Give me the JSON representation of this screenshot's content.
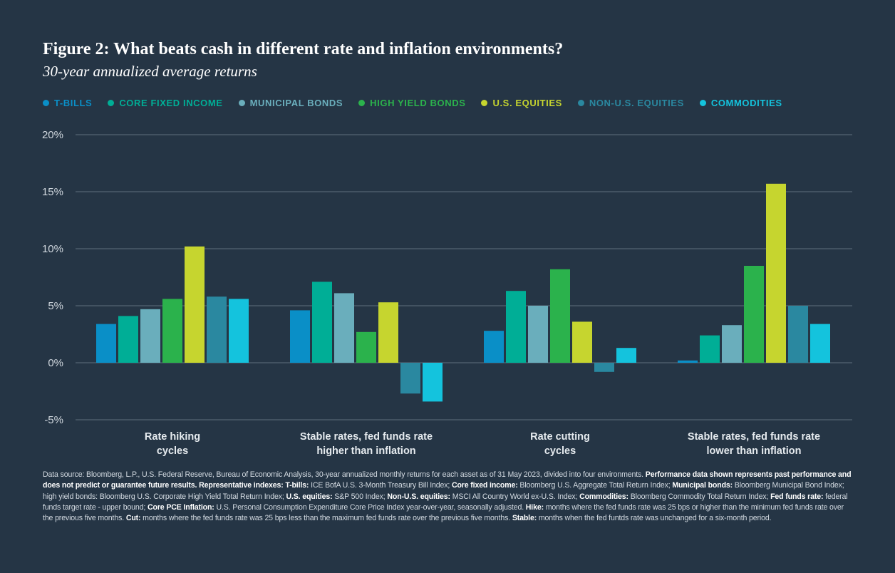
{
  "title": "Figure 2: What beats cash in different rate and inflation environments?",
  "subtitle": "30-year annualized average returns",
  "colors": {
    "background": "#253545",
    "grid": "#5f6e7d",
    "tick_text": "#d0d7de"
  },
  "chart_data": {
    "type": "bar",
    "categories": [
      [
        "Rate hiking",
        "cycles"
      ],
      [
        "Stable rates, fed funds rate",
        "higher than inflation"
      ],
      [
        "Rate cutting",
        "cycles"
      ],
      [
        "Stable rates, fed funds rate",
        "lower than inflation"
      ]
    ],
    "ylim": [
      -5,
      20
    ],
    "yticks": [
      -5,
      0,
      5,
      10,
      15,
      20
    ],
    "ytick_labels": [
      "-5%",
      "0%",
      "5%",
      "10%",
      "15%",
      "20%"
    ],
    "grid": true,
    "legend_position": "top-left",
    "series": [
      {
        "name": "T-BILLS",
        "color": "#0a8fc7",
        "values": [
          3.4,
          4.6,
          2.8,
          0.2
        ]
      },
      {
        "name": "CORE FIXED INCOME",
        "color": "#00ae96",
        "values": [
          4.1,
          7.1,
          6.3,
          2.4
        ]
      },
      {
        "name": "MUNICIPAL BONDS",
        "color": "#6aaebc",
        "values": [
          4.7,
          6.1,
          5.0,
          3.3
        ]
      },
      {
        "name": "HIGH YIELD BONDS",
        "color": "#2bb24c",
        "values": [
          5.6,
          2.7,
          8.2,
          8.5
        ]
      },
      {
        "name": "U.S. EQUITIES",
        "color": "#c6d52f",
        "values": [
          10.2,
          5.3,
          3.6,
          15.7
        ]
      },
      {
        "name": "NON-U.S. EQUITIES",
        "color": "#2a88a0",
        "values": [
          5.8,
          -2.7,
          -0.8,
          5.0
        ]
      },
      {
        "name": "COMMODITIES",
        "color": "#14c3dd",
        "values": [
          5.6,
          -3.4,
          1.3,
          3.4
        ]
      }
    ]
  },
  "footnote": [
    {
      "t": "Data source: Bloomberg, L.P., U.S. Federal Reserve, Bureau of Economic Analysis, 30-year annualized monthly returns for each asset as of 31 May 2023, divided into four environments. ",
      "b": false
    },
    {
      "t": "Performance data shown represents past performance and does not predict or guarantee future results. Representative indexes: T-bills:",
      "b": true
    },
    {
      "t": " ICE BofA U.S. 3-Month Treasury Bill Index; ",
      "b": false
    },
    {
      "t": "Core fixed income:",
      "b": true
    },
    {
      "t": " Bloomberg U.S. Aggregate Total Return Index; ",
      "b": false
    },
    {
      "t": "Municipal bonds:",
      "b": true
    },
    {
      "t": " Bloomberg Municipal Bond Index; high yield bonds: Bloomberg U.S. Corporate High Yield Total Return Index; ",
      "b": false
    },
    {
      "t": "U.S. equities:",
      "b": true
    },
    {
      "t": " S&P 500 Index; ",
      "b": false
    },
    {
      "t": "Non-U.S. equities:",
      "b": true
    },
    {
      "t": " MSCI All Country World ex-U.S. Index; ",
      "b": false
    },
    {
      "t": "Commodities:",
      "b": true
    },
    {
      "t": " Bloomberg Commodity Total Return Index; ",
      "b": false
    },
    {
      "t": "Fed funds rate:",
      "b": true
    },
    {
      "t": " federal funds target rate - upper bound; ",
      "b": false
    },
    {
      "t": "Core PCE Inflation:",
      "b": true
    },
    {
      "t": " U.S. Personal Consumption Expenditure Core Price Index year-over-year, seasonally adjusted. ",
      "b": false
    },
    {
      "t": "Hike:",
      "b": true
    },
    {
      "t": " months where the fed funds rate was 25 bps or higher than the minimum fed funds rate over the previous five months. ",
      "b": false
    },
    {
      "t": "Cut:",
      "b": true
    },
    {
      "t": " months where the fed funds rate was 25 bps less than the maximum fed funds rate over the previous five months. ",
      "b": false
    },
    {
      "t": "Stable:",
      "b": true
    },
    {
      "t": " months when the fed funtds rate was unchanged for a six-month period.",
      "b": false
    }
  ]
}
